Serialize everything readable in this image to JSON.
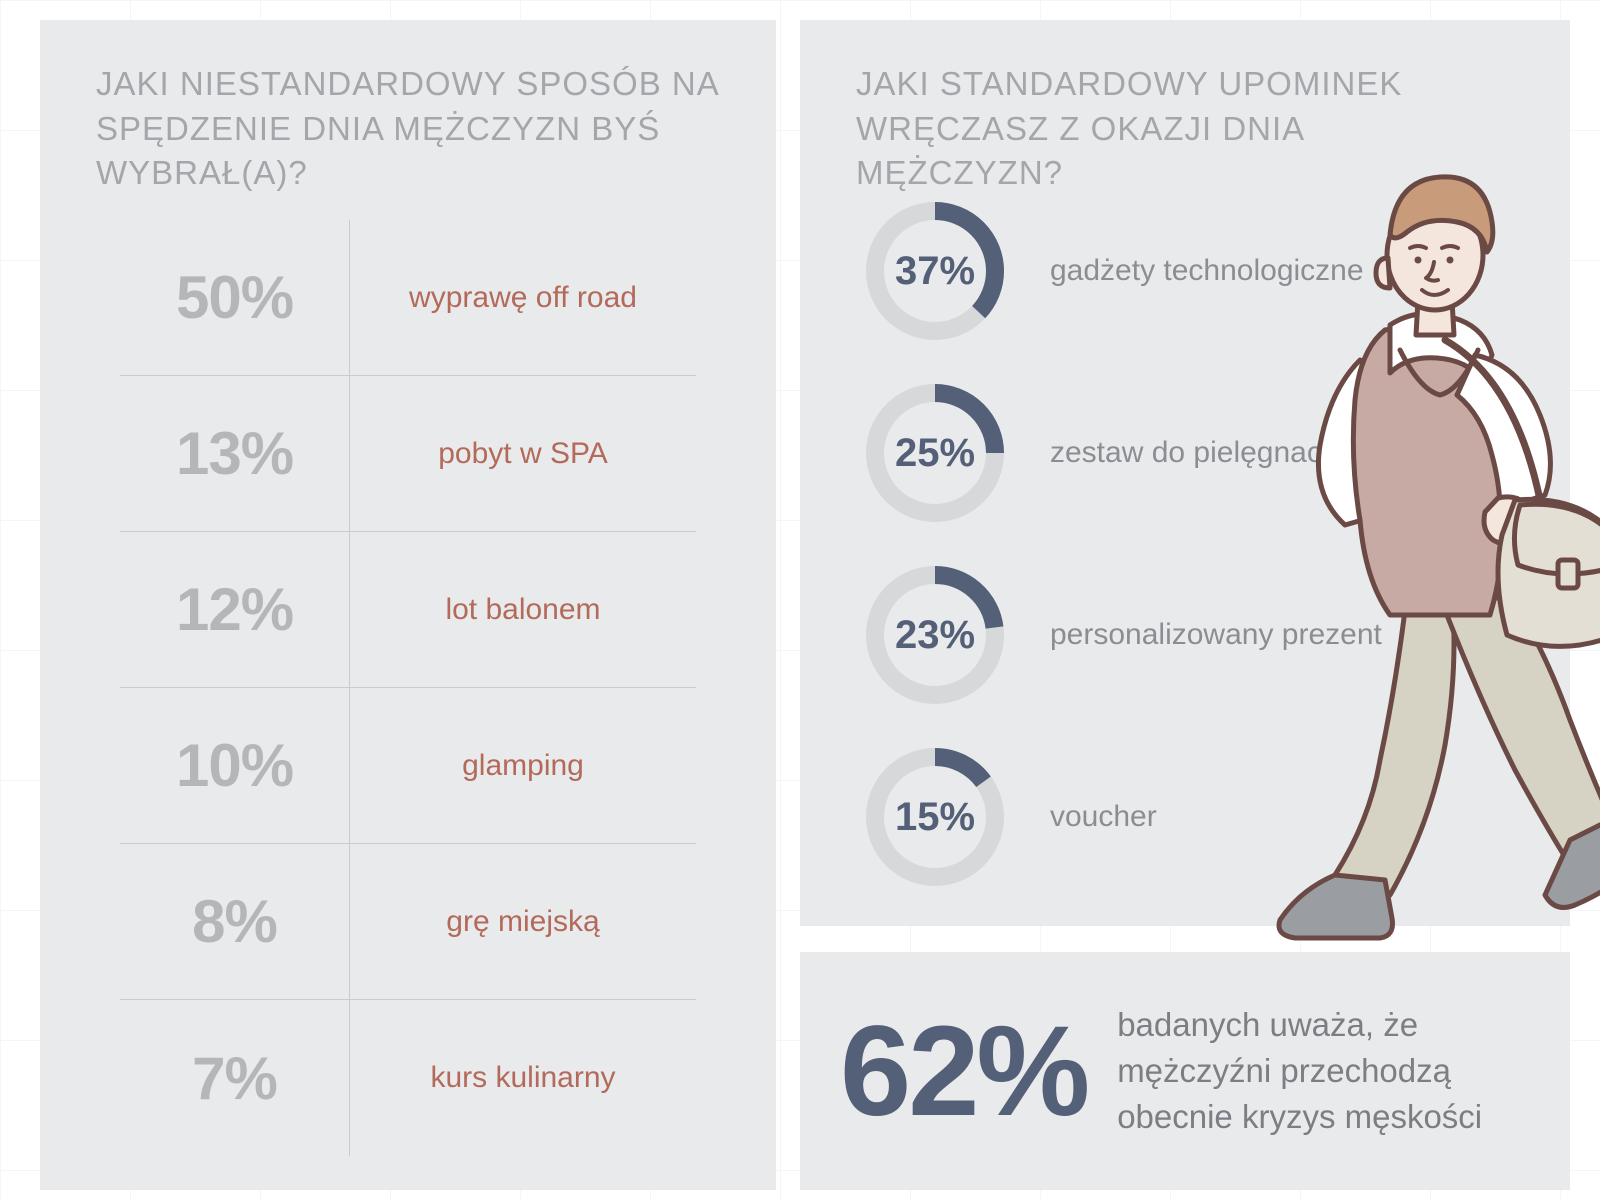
{
  "colors": {
    "panel_bg": "#e9eaeb",
    "heading": "#a3a7ab",
    "pct_grey": "#b4b6b9",
    "divider": "#c9cbcd",
    "accent_red": "#b36a5a",
    "accent_blue": "#545f78",
    "donut_track": "#d6d8da",
    "body_text": "#8a8e93"
  },
  "typography": {
    "heading_fontsize": 33,
    "table_pct_fontsize": 60,
    "table_label_fontsize": 30,
    "donut_pct_fontsize": 40,
    "donut_label_fontsize": 30,
    "bigstat_pct_fontsize": 128,
    "bigstat_text_fontsize": 33
  },
  "left": {
    "title": "JAKI NIESTANDARDOWY SPOSÓB NA SPĘDZENIE DNIA MĘŻCZYZN BYŚ WYBRAŁ(A)?",
    "type": "table",
    "rows": [
      {
        "pct": "50%",
        "value": 50,
        "label": "wyprawę off road"
      },
      {
        "pct": "13%",
        "value": 13,
        "label": "pobyt w SPA"
      },
      {
        "pct": "12%",
        "value": 12,
        "label": "lot balonem"
      },
      {
        "pct": "10%",
        "value": 10,
        "label": "glamping"
      },
      {
        "pct": "8%",
        "value": 8,
        "label": "grę miejską"
      },
      {
        "pct": "7%",
        "value": 7,
        "label": "kurs kulinarny"
      }
    ]
  },
  "right": {
    "title": "JAKI STANDARDOWY UPOMINEK WRĘCZASZ Z OKAZJI DNIA MĘŻCZYZN?",
    "type": "donut-list",
    "donut": {
      "radius": 60,
      "stroke_width": 18,
      "track_color": "#d6d8da",
      "fill_color": "#545f78"
    },
    "items": [
      {
        "pct": "37%",
        "value": 37,
        "label": "gadżety technologiczne"
      },
      {
        "pct": "25%",
        "value": 25,
        "label": "zestaw do pielęgnacji"
      },
      {
        "pct": "23%",
        "value": 23,
        "label": "personalizowany prezent"
      },
      {
        "pct": "15%",
        "value": 15,
        "label": "voucher"
      }
    ]
  },
  "stat": {
    "pct": "62%",
    "value": 62,
    "text": "badanych uważa, że mężczyźni przechodzą obecnie kryzys męskości"
  },
  "illustration": {
    "outline": "#6b4a45",
    "hair": "#c89b7a",
    "skin": "#f4e6dc",
    "vest": "#c7aaa3",
    "shirt": "#ffffff",
    "pants": "#d6d2c4",
    "shoes": "#9a9ea3",
    "bag": "#e4dfd5"
  }
}
